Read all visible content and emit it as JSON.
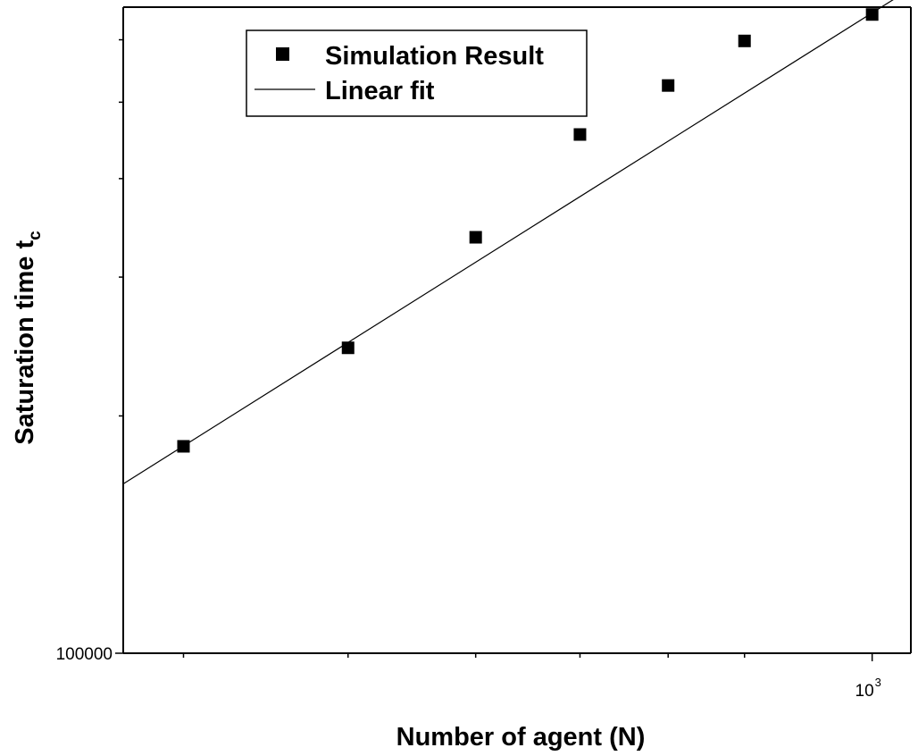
{
  "chart_data": {
    "type": "scatter",
    "xlabel": "Number of agent (N)",
    "ylabel": "Saturation time t",
    "ylabel_subscript": "c",
    "x_scale": "log",
    "y_scale": "log",
    "xlim": [
      270,
      1070
    ],
    "ylim": [
      100000,
      660000
    ],
    "x_tick_label": {
      "base": "10",
      "exponent": "3",
      "value": 1000
    },
    "x_minor_ticks": [
      300,
      400,
      500,
      600,
      700,
      800
    ],
    "y_tick_label": {
      "text": "100000",
      "value": 100000
    },
    "y_minor_ticks": [
      200000,
      300000,
      400000,
      500000,
      600000
    ],
    "grid": false,
    "legend": {
      "position": "top-left",
      "entries": [
        {
          "label": "Simulation Result",
          "marker": "square"
        },
        {
          "label": "Linear fit",
          "marker": "line"
        }
      ]
    },
    "series": [
      {
        "name": "Simulation Result",
        "x": [
          300,
          400,
          500,
          600,
          700,
          800,
          1000
        ],
        "y": [
          183000,
          244000,
          337000,
          455000,
          525000,
          598000,
          646000
        ]
      },
      {
        "name": "Linear fit",
        "x": [
          270,
          1060
        ],
        "y": [
          164000,
          690000
        ]
      }
    ],
    "colors": {
      "marker": "#000000",
      "line": "#000000",
      "axis": "#000000"
    }
  }
}
